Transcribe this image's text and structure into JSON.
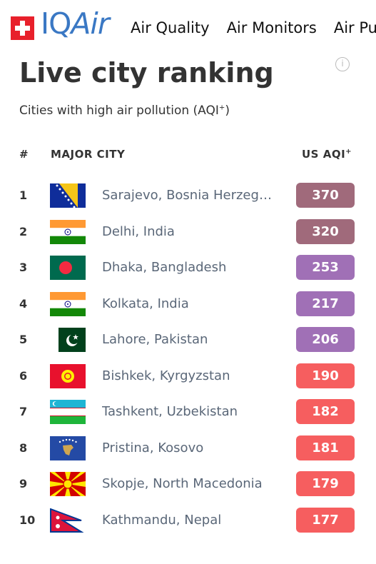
{
  "header": {
    "logo_iq": "IQ",
    "logo_air": "Air",
    "nav": [
      "Air Quality",
      "Air Monitors",
      "Air Pu"
    ]
  },
  "title": "Live city ranking",
  "subtitle": "Cities with high air pollution (AQI",
  "columns": {
    "rank": "#",
    "city": "MAJOR CITY",
    "aqi": "US AQI"
  },
  "plus": "+",
  "rows": [
    {
      "rank": "1",
      "city": "Sarajevo, Bosnia Herzegovina",
      "aqi": "370",
      "color": "#a06a7b",
      "flag": "bosnia-flag-icon"
    },
    {
      "rank": "2",
      "city": "Delhi, India",
      "aqi": "320",
      "color": "#a06a7b",
      "flag": "india-flag-icon"
    },
    {
      "rank": "3",
      "city": "Dhaka, Bangladesh",
      "aqi": "253",
      "color": "#a070b6",
      "flag": "bangladesh-flag-icon"
    },
    {
      "rank": "4",
      "city": "Kolkata, India",
      "aqi": "217",
      "color": "#a070b6",
      "flag": "india-flag-icon"
    },
    {
      "rank": "5",
      "city": "Lahore, Pakistan",
      "aqi": "206",
      "color": "#a070b6",
      "flag": "pakistan-flag-icon"
    },
    {
      "rank": "6",
      "city": "Bishkek, Kyrgyzstan",
      "aqi": "190",
      "color": "#f65e5f",
      "flag": "kyrgyzstan-flag-icon"
    },
    {
      "rank": "7",
      "city": "Tashkent, Uzbekistan",
      "aqi": "182",
      "color": "#f65e5f",
      "flag": "uzbekistan-flag-icon"
    },
    {
      "rank": "8",
      "city": "Pristina, Kosovo",
      "aqi": "181",
      "color": "#f65e5f",
      "flag": "kosovo-flag-icon"
    },
    {
      "rank": "9",
      "city": "Skopje, North Macedonia",
      "aqi": "179",
      "color": "#f65e5f",
      "flag": "macedonia-flag-icon"
    },
    {
      "rank": "10",
      "city": "Kathmandu, Nepal",
      "aqi": "177",
      "color": "#f65e5f",
      "flag": "nepal-flag-icon"
    }
  ]
}
